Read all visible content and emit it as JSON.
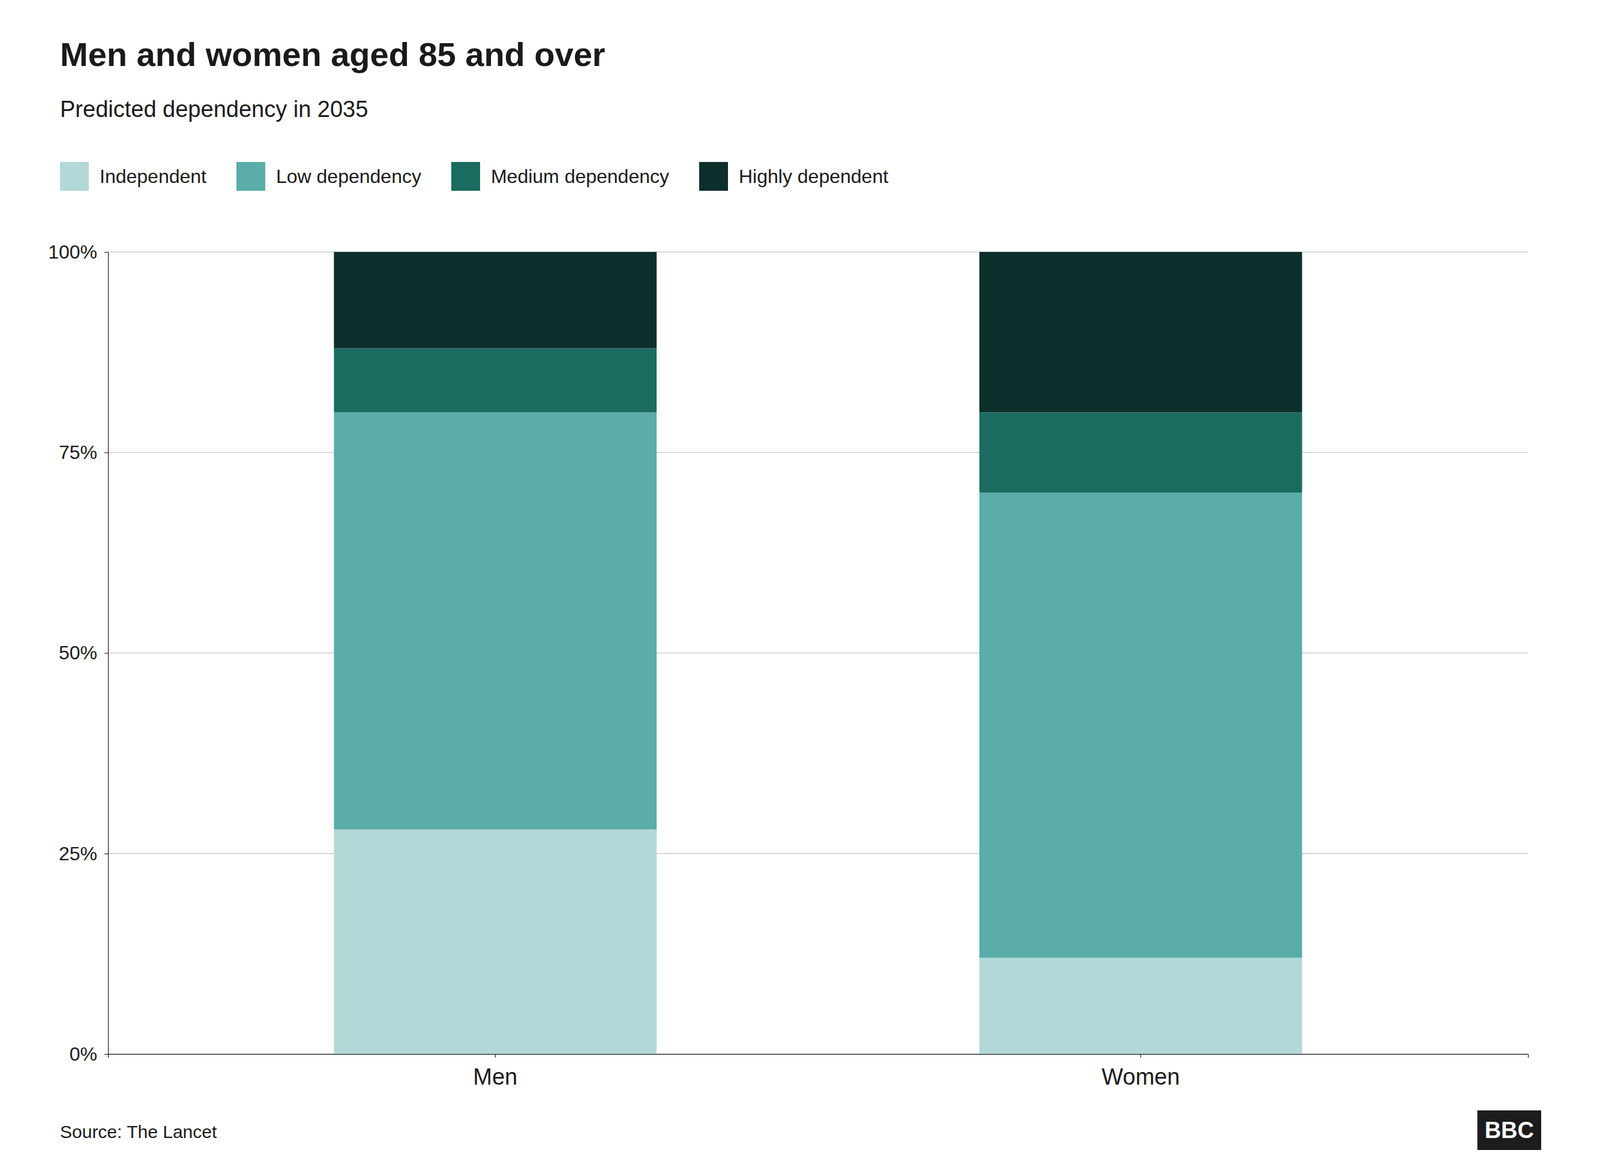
{
  "chart_data": {
    "type": "bar",
    "stacked": true,
    "title": "Men and women aged 85 and over",
    "subtitle": "Predicted dependency in 2035",
    "categories": [
      "Men",
      "Women"
    ],
    "series": [
      {
        "name": "Independent",
        "color": "#b2d8d8",
        "values": [
          0.28,
          0.12
        ]
      },
      {
        "name": "Low dependency",
        "color": "#5aada8",
        "values": [
          0.52,
          0.58
        ]
      },
      {
        "name": "Medium dependency",
        "color": "#1a6b60",
        "values": [
          0.08,
          0.1
        ]
      },
      {
        "name": "Highly dependent",
        "color": "#0d2f2b",
        "values": [
          0.12,
          0.2
        ]
      }
    ],
    "ylim": [
      0,
      1.0
    ],
    "yticks": [
      {
        "value": 0,
        "label": "0%"
      },
      {
        "value": 0.25,
        "label": "25%"
      },
      {
        "value": 0.5,
        "label": "50%"
      },
      {
        "value": 0.75,
        "label": "75%"
      },
      {
        "value": 1.0,
        "label": "100%"
      }
    ],
    "grid": true,
    "legend": "upper left",
    "source": "Source: The Lancet",
    "annotations": [
      "BBC"
    ]
  }
}
